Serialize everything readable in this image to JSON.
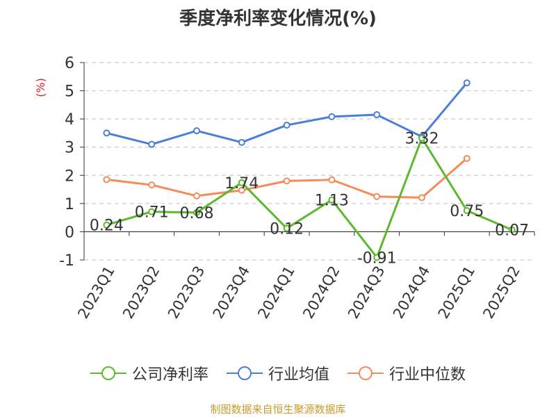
{
  "chart_data": {
    "type": "line",
    "title": "季度净利率变化情况(%)",
    "ylabel": "(%)",
    "xlabel": "",
    "ylim": [
      -1,
      6
    ],
    "yticks": [
      -1,
      0,
      1,
      2,
      3,
      4,
      5,
      6
    ],
    "grid": true,
    "legend_position": "bottom",
    "categories": [
      "2023Q1",
      "2023Q2",
      "2023Q3",
      "2023Q4",
      "2024Q1",
      "2024Q2",
      "2024Q3",
      "2024Q4",
      "2025Q1",
      "2025Q2"
    ],
    "series": [
      {
        "name": "公司净利率",
        "color": "#5cb82c",
        "values": [
          0.24,
          0.71,
          0.68,
          1.74,
          0.12,
          1.13,
          -0.91,
          3.32,
          0.75,
          0.07
        ],
        "labels": [
          "0.24",
          "0.71",
          "0.68",
          "1.74",
          "0.12",
          "1.13",
          "-0.91",
          "3.32",
          "0.75",
          "0.07"
        ]
      },
      {
        "name": "行业均值",
        "color": "#4a7fd8",
        "values": [
          3.5,
          3.1,
          3.58,
          3.17,
          3.78,
          4.08,
          4.15,
          3.37,
          5.28,
          null
        ]
      },
      {
        "name": "行业中位数",
        "color": "#f48b59",
        "values": [
          1.85,
          1.66,
          1.27,
          1.47,
          1.8,
          1.84,
          1.25,
          1.21,
          2.6,
          null
        ]
      }
    ]
  },
  "source_note": "制图数据来自恒生聚源数据库"
}
